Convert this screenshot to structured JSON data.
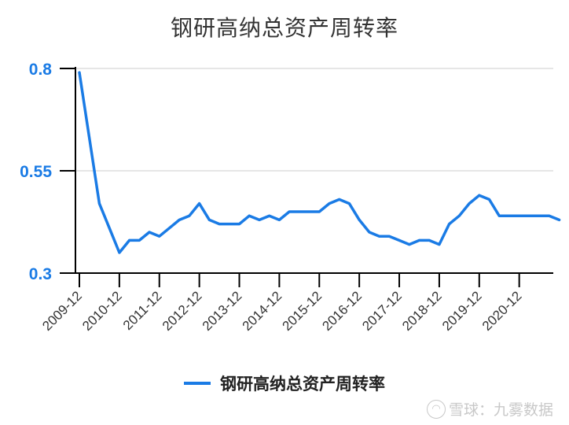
{
  "title": "钢研高纳总资产周转率",
  "legend": {
    "label": "钢研高纳总资产周转率",
    "color": "#1a7be5"
  },
  "watermark": {
    "icon": "snowball-logo-icon",
    "text": "雪球：九雾数据"
  },
  "y_axis": {
    "ticks": [
      "0.8",
      "0.55",
      "0.3"
    ],
    "tick_color": "#1a7be5"
  },
  "x_axis": {
    "ticks": [
      "2009-12",
      "2010-12",
      "2011-12",
      "2012-12",
      "2013-12",
      "2014-12",
      "2015-12",
      "2016-12",
      "2017-12",
      "2018-12",
      "2019-12",
      "2020-12"
    ]
  },
  "chart_data": {
    "type": "line",
    "title": "钢研高纳总资产周转率",
    "xlabel": "",
    "ylabel": "",
    "ylim": [
      0.3,
      0.8
    ],
    "yticks": [
      0.3,
      0.55,
      0.8
    ],
    "grid": {
      "horizontal": true,
      "vertical": false
    },
    "legend_position": "bottom",
    "x": [
      "2009-12",
      "2010-03",
      "2010-06",
      "2010-09",
      "2010-12",
      "2011-03",
      "2011-06",
      "2011-09",
      "2011-12",
      "2012-03",
      "2012-06",
      "2012-09",
      "2012-12",
      "2013-03",
      "2013-06",
      "2013-09",
      "2013-12",
      "2014-03",
      "2014-06",
      "2014-09",
      "2014-12",
      "2015-03",
      "2015-06",
      "2015-09",
      "2015-12",
      "2016-03",
      "2016-06",
      "2016-09",
      "2016-12",
      "2017-03",
      "2017-06",
      "2017-09",
      "2017-12",
      "2018-03",
      "2018-06",
      "2018-09",
      "2018-12",
      "2019-03",
      "2019-06",
      "2019-09",
      "2019-12",
      "2020-03",
      "2020-06",
      "2020-09",
      "2020-12",
      "2021-03",
      "2021-06",
      "2021-09",
      "2021-12"
    ],
    "series": [
      {
        "name": "钢研高纳总资产周转率",
        "color": "#1a7be5",
        "values": [
          0.79,
          0.63,
          0.47,
          0.41,
          0.35,
          0.38,
          0.38,
          0.4,
          0.39,
          0.41,
          0.43,
          0.44,
          0.47,
          0.43,
          0.42,
          0.42,
          0.42,
          0.44,
          0.43,
          0.44,
          0.43,
          0.45,
          0.45,
          0.45,
          0.45,
          0.47,
          0.48,
          0.47,
          0.43,
          0.4,
          0.39,
          0.39,
          0.38,
          0.37,
          0.38,
          0.38,
          0.37,
          0.42,
          0.44,
          0.47,
          0.49,
          0.48,
          0.44,
          0.44,
          0.44,
          0.44,
          0.44,
          0.44,
          0.43
        ]
      }
    ]
  }
}
